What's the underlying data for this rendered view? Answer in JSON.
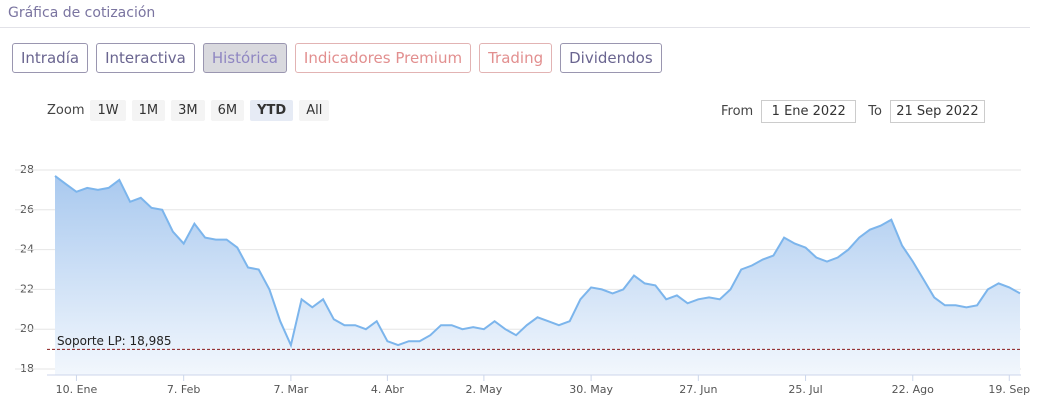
{
  "header": {
    "title": "Gráfica de cotización"
  },
  "tabs": [
    "Intradía",
    "Interactiva",
    "Histórica",
    "Indicadores Premium",
    "Trading",
    "Dividendos"
  ],
  "zoom": {
    "label": "Zoom",
    "buttons": [
      "1W",
      "1M",
      "3M",
      "6M",
      "YTD",
      "All"
    ]
  },
  "range": {
    "from_label": "From",
    "from": "1 Ene 2022",
    "to_label": "To",
    "to": "21 Sep 2022"
  },
  "chart_data": {
    "type": "area",
    "categories": [
      null,
      null,
      "10. Ene",
      null,
      null,
      null,
      null,
      null,
      null,
      null,
      null,
      null,
      "7. Feb",
      null,
      null,
      null,
      null,
      null,
      null,
      null,
      null,
      null,
      "7. Mar",
      null,
      null,
      null,
      null,
      null,
      null,
      null,
      null,
      "4. Abr",
      null,
      null,
      null,
      null,
      null,
      null,
      null,
      null,
      "2. May",
      null,
      null,
      null,
      null,
      null,
      null,
      null,
      null,
      null,
      "30. May",
      null,
      null,
      null,
      null,
      null,
      null,
      null,
      null,
      null,
      "27. Jun",
      null,
      null,
      null,
      null,
      null,
      null,
      null,
      null,
      null,
      "25. Jul",
      null,
      null,
      null,
      null,
      null,
      null,
      null,
      null,
      null,
      "22. Ago",
      null,
      null,
      null,
      null,
      null,
      null,
      null,
      null,
      "19. Sep",
      null
    ],
    "values": [
      27.7,
      27.3,
      26.9,
      27.1,
      27.0,
      27.1,
      27.5,
      26.4,
      26.6,
      26.1,
      26.0,
      24.9,
      24.3,
      25.3,
      24.6,
      24.5,
      24.5,
      24.1,
      23.1,
      23.0,
      22.0,
      20.4,
      19.2,
      21.5,
      21.1,
      21.5,
      20.5,
      20.2,
      20.2,
      20.0,
      20.4,
      19.4,
      19.2,
      19.4,
      19.4,
      19.7,
      20.2,
      20.2,
      20.0,
      20.1,
      20.0,
      20.4,
      20.0,
      19.7,
      20.2,
      20.6,
      20.4,
      20.2,
      20.4,
      21.5,
      22.1,
      22.0,
      21.8,
      22.0,
      22.7,
      22.3,
      22.2,
      21.5,
      21.7,
      21.3,
      21.5,
      21.6,
      21.5,
      22.0,
      23.0,
      23.2,
      23.5,
      23.7,
      24.6,
      24.3,
      24.1,
      23.6,
      23.4,
      23.6,
      24.0,
      24.6,
      25.0,
      25.2,
      25.5,
      24.2,
      23.4,
      22.5,
      21.6,
      21.2,
      21.2,
      21.1,
      21.2,
      22.0,
      22.3,
      22.1,
      21.8
    ],
    "color": "#7cb5ec",
    "ylim": [
      17.7,
      28.6
    ],
    "yticks": [
      18,
      20,
      22,
      24,
      26,
      28
    ],
    "grid": true,
    "support": {
      "label": "Soporte LP: 18,985",
      "value": 18.985,
      "color": "#8b1a1a"
    }
  }
}
